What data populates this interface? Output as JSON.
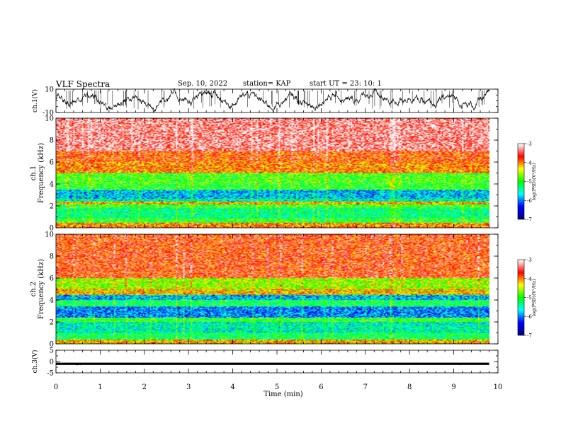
{
  "header": {
    "title": "VLF Spectra",
    "date": "Sep. 10, 2022",
    "station": "station= KAP",
    "start": "start  UT  =   23: 10: 1"
  },
  "chart_data": [
    {
      "type": "line",
      "panel": "ch1-waveform",
      "ylabel": "ch.1(V)",
      "ylim": [
        -10,
        10
      ],
      "yticks": [
        "10",
        "-10"
      ],
      "xlim": [
        0,
        10
      ],
      "series": [
        {
          "values_note": "noisy waveform roughly within -6..8 V over 0-9.8 min"
        }
      ]
    },
    {
      "type": "heatmap",
      "panel": "ch1-spectrogram",
      "ylabel": "ch.1\nFrequency (kHz)",
      "ylabel_lines": [
        "ch.1",
        "Frequency (kHz)"
      ],
      "ylim": [
        0,
        10
      ],
      "yticks": [
        "0",
        "2",
        "4",
        "6",
        "8",
        "10"
      ],
      "xlim": [
        0,
        10
      ],
      "data_end_min": 9.8,
      "colorbar": {
        "label": "log(PSD)(V²/Hz)",
        "range": [
          -7,
          -3
        ],
        "ticks": [
          "-3",
          "-4",
          "-5",
          "-6",
          "-7"
        ]
      },
      "bands": [
        {
          "from": 0,
          "to": 0.5,
          "level": -4.0
        },
        {
          "from": 0.5,
          "to": 0.9,
          "level": -5.0
        },
        {
          "from": 0.9,
          "to": 1.8,
          "level": -5.3
        },
        {
          "from": 1.8,
          "to": 2.1,
          "level": -5.0
        },
        {
          "from": 2.1,
          "to": 2.4,
          "level": -4.2
        },
        {
          "from": 2.4,
          "to": 2.7,
          "level": -5.5
        },
        {
          "from": 2.7,
          "to": 3.5,
          "level": -5.8
        },
        {
          "from": 3.5,
          "to": 4.0,
          "level": -5.0
        },
        {
          "from": 4.0,
          "to": 5.0,
          "level": -4.9
        },
        {
          "from": 5.0,
          "to": 6.0,
          "level": -4.0
        },
        {
          "from": 6.0,
          "to": 7.0,
          "level": -3.8
        },
        {
          "from": 7.0,
          "to": 10.0,
          "level": -3.3
        }
      ]
    },
    {
      "type": "heatmap",
      "panel": "ch2-spectrogram",
      "ylabel": "ch.2\nFrequency (kHz)",
      "ylabel_lines": [
        "ch.2",
        "Frequency (kHz)"
      ],
      "ylim": [
        0,
        10
      ],
      "yticks": [
        "0",
        "2",
        "4",
        "6",
        "8",
        "10"
      ],
      "xlim": [
        0,
        10
      ],
      "data_end_min": 9.8,
      "colorbar": {
        "label": "log(PSD)(V²/Hz)",
        "range": [
          -7,
          -3
        ],
        "ticks": [
          "-3",
          "-4",
          "-5",
          "-6",
          "-7"
        ]
      },
      "bands": [
        {
          "from": 0,
          "to": 0.4,
          "level": -4.2
        },
        {
          "from": 0.4,
          "to": 1.0,
          "level": -5.2
        },
        {
          "from": 1.0,
          "to": 2.0,
          "level": -5.5
        },
        {
          "from": 2.0,
          "to": 2.4,
          "level": -5.0
        },
        {
          "from": 2.4,
          "to": 3.4,
          "level": -6.0
        },
        {
          "from": 3.4,
          "to": 4.0,
          "level": -5.2
        },
        {
          "from": 4.0,
          "to": 4.5,
          "level": -5.8
        },
        {
          "from": 4.5,
          "to": 5.0,
          "level": -4.2
        },
        {
          "from": 5.0,
          "to": 6.0,
          "level": -4.6
        },
        {
          "from": 6.0,
          "to": 10.0,
          "level": -3.7
        }
      ]
    },
    {
      "type": "line",
      "panel": "ch3-waveform",
      "ylabel": "ch.3(V)",
      "ylim": [
        -5,
        5
      ],
      "yticks": [
        "5",
        "0",
        "-5"
      ],
      "xlim": [
        0,
        10
      ],
      "xlabel": "Time (min)",
      "xticks": [
        "0",
        "1",
        "2",
        "3",
        "4",
        "5",
        "6",
        "7",
        "8",
        "9",
        "10"
      ],
      "series": [
        {
          "values_note": "near-constant signal around -1 V with small noise"
        }
      ]
    }
  ],
  "colors": {
    "scale": [
      "#000080",
      "#0000ff",
      "#00ffff",
      "#00ff00",
      "#ffff00",
      "#ff0000",
      "#ffffff"
    ]
  }
}
